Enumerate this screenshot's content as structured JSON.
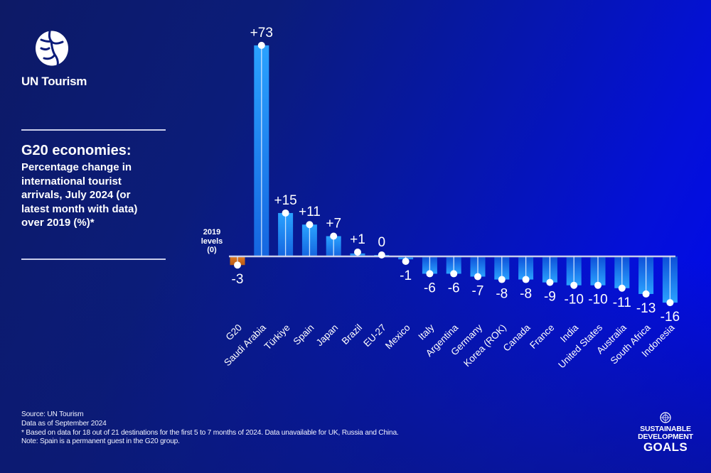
{
  "brand": {
    "name": "UN Tourism",
    "logo_icon": "un-tourism-globe-icon"
  },
  "heading": {
    "title": "G20 economies:",
    "subtitle_lines": [
      "Percentage change in",
      "international tourist",
      "arrivals, July 2024 (or",
      "latest month with data)",
      "over 2019 (%)*"
    ]
  },
  "baseline_note": {
    "lines": [
      "2019",
      "levels",
      "(0)"
    ]
  },
  "footer": {
    "lines": [
      "Source: UN Tourism",
      "Data as of September 2024",
      "* Based on data for 18 out of 21 destinations for the first 5 to 7 months of 2024. Data unavailable for UK, Russia and China.",
      "Note: Spain is a permanent guest in the G20 group."
    ]
  },
  "sdg": {
    "emblem_icon": "un-emblem-icon",
    "lines": [
      "SUSTAINABLE",
      "DEVELOPMENT",
      "GOALS"
    ]
  },
  "colors": {
    "aggregate_bar": "#d9731f",
    "bar_light": "#2aa2ff",
    "bar_dark": "#0d4fd8",
    "baseline": "#c9cdea",
    "text": "#ffffff"
  },
  "chart_data": {
    "type": "bar",
    "title": "G20 economies: Percentage change in international tourist arrivals, July 2024 (or latest month with data) over 2019 (%)*",
    "xlabel": "",
    "ylabel": "",
    "baseline_label": "2019 levels (0)",
    "ylim": [
      -16,
      73
    ],
    "grid": false,
    "legend": "none",
    "categories": [
      "G20",
      "Saudi Arabia",
      "Türkiye",
      "Spain",
      "Japan",
      "Brazil",
      "EU-27",
      "Mexico",
      "Italy",
      "Argentina",
      "Germany",
      "Korea (ROK)",
      "Canada",
      "France",
      "India",
      "United States",
      "Australia",
      "South Africa",
      "Indonesia"
    ],
    "values": [
      -3,
      73,
      15,
      11,
      7,
      1,
      0,
      -1,
      -6,
      -6,
      -7,
      -8,
      -8,
      -9,
      -10,
      -10,
      -11,
      -13,
      -16
    ],
    "labels": [
      "-3",
      "+73",
      "+15",
      "+11",
      "+7",
      "+1",
      "0",
      "-1",
      "-6",
      "-6",
      "-7",
      "-8",
      "-8",
      "-9",
      "-10",
      "-10",
      "-11",
      "-13",
      "-16"
    ],
    "highlight": [
      "G20"
    ]
  }
}
